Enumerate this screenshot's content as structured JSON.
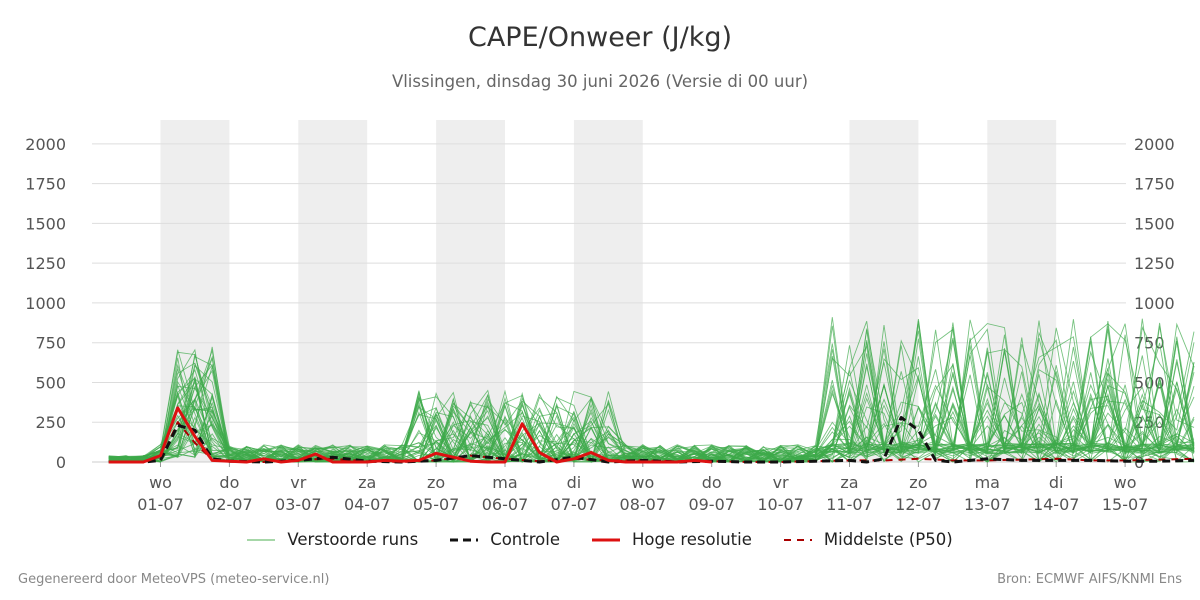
{
  "title": "CAPE/Onweer (J/kg)",
  "subtitle": "Vlissingen, dinsdag 30 juni 2026 (Versie di 00 uur)",
  "footer": {
    "left": "Gegenereerd door MeteoVPS (meteo-service.nl)",
    "right": "Bron: ECMWF AIFS/KNMI Ens"
  },
  "chart_data": {
    "type": "line",
    "ylim": [
      0,
      2150
    ],
    "yticks": [
      0,
      250,
      500,
      750,
      1000,
      1250,
      1500,
      1750,
      2000
    ],
    "xlim_days": [
      0,
      15
    ],
    "x_ticks": [
      {
        "day": "wo",
        "date": "01-07"
      },
      {
        "day": "do",
        "date": "02-07"
      },
      {
        "day": "vr",
        "date": "03-07"
      },
      {
        "day": "za",
        "date": "04-07"
      },
      {
        "day": "zo",
        "date": "05-07"
      },
      {
        "day": "ma",
        "date": "06-07"
      },
      {
        "day": "di",
        "date": "07-07"
      },
      {
        "day": "wo",
        "date": "08-07"
      },
      {
        "day": "do",
        "date": "09-07"
      },
      {
        "day": "vr",
        "date": "10-07"
      },
      {
        "day": "za",
        "date": "11-07"
      },
      {
        "day": "zo",
        "date": "12-07"
      },
      {
        "day": "ma",
        "date": "13-07"
      },
      {
        "day": "di",
        "date": "14-07"
      },
      {
        "day": "wo",
        "date": "15-07"
      }
    ],
    "weekend_shading": [
      [
        0,
        1
      ],
      [
        2,
        3
      ],
      [
        4,
        5
      ],
      [
        6,
        7
      ],
      [
        10,
        11
      ],
      [
        12,
        13
      ]
    ],
    "grid": true,
    "legend_position": "bottom",
    "legend": [
      {
        "key": "perturbed",
        "label": "Verstoorde runs",
        "color": "#4caf50",
        "style": "thin"
      },
      {
        "key": "control",
        "label": "Controle",
        "color": "#111111",
        "style": "dashed"
      },
      {
        "key": "hires",
        "label": "Hoge resolutie",
        "color": "#dd1111",
        "style": "solid"
      },
      {
        "key": "median",
        "label": "Middelste (P50)",
        "color": "#aa0000",
        "style": "dashed"
      }
    ],
    "series": [
      {
        "name": "Hoge resolutie",
        "key": "hires",
        "x": [
          -0.75,
          -0.5,
          -0.25,
          0,
          0.25,
          0.5,
          0.75,
          1,
          1.25,
          1.5,
          1.75,
          2,
          2.25,
          2.5,
          2.75,
          3,
          3.25,
          3.5,
          3.75,
          4,
          4.25,
          4.5,
          4.75,
          5,
          5.25,
          5.5,
          5.75,
          6,
          6.25,
          6.5,
          6.75,
          7,
          7.25,
          7.5,
          7.75,
          8
        ],
        "y": [
          0,
          0,
          0,
          40,
          340,
          160,
          10,
          5,
          0,
          20,
          0,
          10,
          50,
          0,
          0,
          0,
          10,
          5,
          10,
          55,
          30,
          5,
          0,
          0,
          240,
          60,
          0,
          20,
          60,
          10,
          0,
          0,
          0,
          0,
          10,
          0
        ]
      },
      {
        "name": "Controle",
        "key": "control",
        "x": [
          -0.75,
          -0.5,
          -0.25,
          0,
          0.25,
          0.5,
          0.75,
          1,
          1.5,
          2,
          2.5,
          3,
          3.5,
          4,
          4.5,
          5,
          5.5,
          6,
          6.5,
          7,
          7.5,
          8,
          8.5,
          9,
          9.5,
          10,
          10.25,
          10.5,
          10.75,
          11,
          11.25,
          11.5,
          12,
          12.5,
          13,
          13.5,
          14,
          14.5,
          15
        ],
        "y": [
          0,
          0,
          0,
          10,
          230,
          200,
          20,
          5,
          0,
          10,
          30,
          5,
          0,
          10,
          40,
          20,
          0,
          30,
          0,
          10,
          0,
          5,
          0,
          0,
          5,
          10,
          0,
          20,
          280,
          200,
          10,
          0,
          20,
          10,
          10,
          10,
          5,
          5,
          10
        ]
      },
      {
        "name": "Middelste (P50)",
        "key": "median",
        "x": [
          -0.75,
          -0.5,
          -0.25,
          0,
          0.25,
          0.5,
          0.75,
          1,
          1.5,
          2,
          2.5,
          3,
          3.5,
          4,
          4.5,
          5,
          5.5,
          6,
          6.5,
          7,
          7.5,
          8,
          8.5,
          9,
          9.5,
          10,
          10.5,
          11,
          11.5,
          12,
          12.5,
          13,
          13.5,
          14,
          14.5,
          15
        ],
        "y": [
          0,
          0,
          0,
          10,
          250,
          120,
          15,
          5,
          0,
          15,
          20,
          5,
          0,
          10,
          40,
          20,
          5,
          20,
          10,
          10,
          5,
          5,
          0,
          0,
          5,
          10,
          10,
          20,
          10,
          10,
          15,
          20,
          10,
          10,
          15,
          20
        ]
      }
    ],
    "perturbed_members": 50
  }
}
